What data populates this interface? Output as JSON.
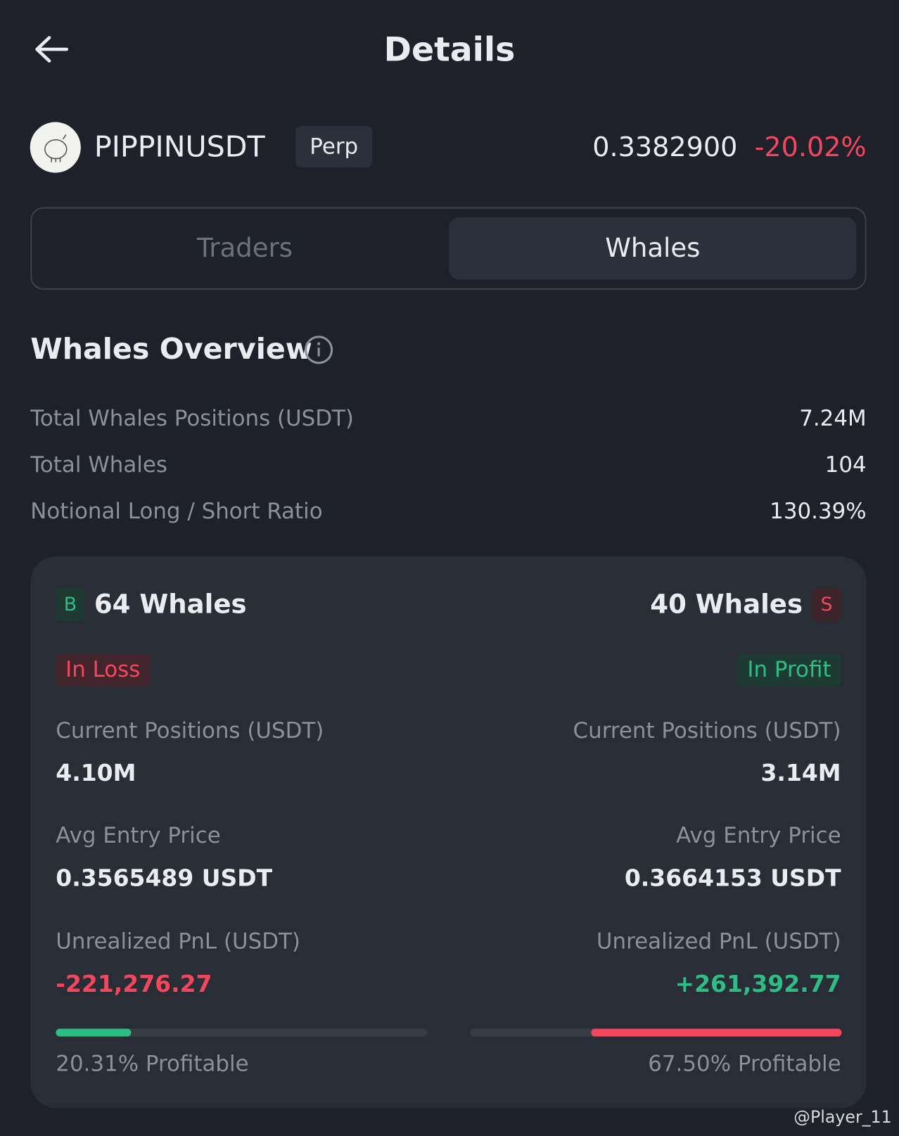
{
  "header": {
    "title": "Details"
  },
  "pair": {
    "symbol": "PIPPINUSDT",
    "badge": "Perp",
    "price": "0.3382900",
    "change": "-20.02%"
  },
  "tabs": [
    "Traders",
    "Whales"
  ],
  "overview": {
    "title": "Whales Overview",
    "rows": [
      [
        "Total Whales Positions (USDT)",
        "7.24M"
      ],
      [
        "Total Whales",
        "104"
      ],
      [
        "Notional Long / Short Ratio",
        "130.39%"
      ]
    ]
  },
  "long": {
    "badge": "B",
    "count": "64 Whales",
    "status": "In Loss",
    "positions_label": "Current Positions (USDT)",
    "positions": "4.10M",
    "entry_label": "Avg Entry Price",
    "entry": "0.3565489 USDT",
    "pnl_label": "Unrealized PnL (USDT)",
    "pnl": "-221,276.27",
    "profitable": 20.31,
    "profitable_label": "20.31% Profitable"
  },
  "short": {
    "badge": "S",
    "count": "40 Whales",
    "status": "In Profit",
    "positions_label": "Current Positions (USDT)",
    "positions": "3.14M",
    "entry_label": "Avg Entry Price",
    "entry": "0.3664153 USDT",
    "pnl_label": "Unrealized PnL (USDT)",
    "pnl": "+261,392.77",
    "profitable": 67.5,
    "profitable_label": "67.50% Profitable"
  },
  "watermark": "@Player_11"
}
